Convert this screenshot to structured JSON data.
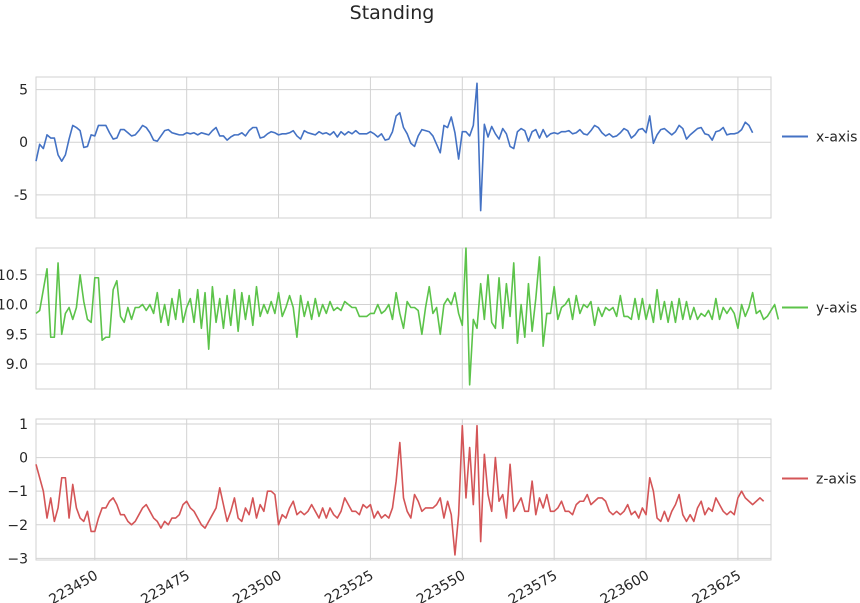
{
  "title": "Standing",
  "colors": {
    "grid": "#d2d2d2",
    "frame": "#d2d2d2",
    "x": "#4472c4",
    "y": "#5cc34a",
    "z": "#d45557"
  },
  "chart_data": [
    {
      "type": "line",
      "series": [
        {
          "name": "x-axis",
          "color": "#4472c4"
        }
      ],
      "x_start": 223434,
      "x_step": 1,
      "xlim": [
        223434,
        223634
      ],
      "xticks": [
        223450,
        223475,
        223500,
        223525,
        223550,
        223575,
        223600,
        223625
      ],
      "ylim": [
        -7.2,
        6.2
      ],
      "yticks": [
        5,
        0,
        -5
      ],
      "grid": true,
      "legend": "right",
      "values": [
        -1.8,
        -0.2,
        -0.6,
        0.7,
        0.4,
        0.4,
        -1.2,
        -1.8,
        -1.2,
        0.3,
        1.6,
        1.4,
        1.1,
        -0.5,
        -0.4,
        0.7,
        0.6,
        1.6,
        1.6,
        1.6,
        0.9,
        0.3,
        0.4,
        1.2,
        1.2,
        0.9,
        0.6,
        0.7,
        1.1,
        1.6,
        1.4,
        0.9,
        0.2,
        0.1,
        0.6,
        1.1,
        1.2,
        0.9,
        0.8,
        0.7,
        0.7,
        0.9,
        0.8,
        0.9,
        0.7,
        0.9,
        0.8,
        0.7,
        1.1,
        1.4,
        0.6,
        0.6,
        0.2,
        0.5,
        0.7,
        0.7,
        0.9,
        0.6,
        1.1,
        1.4,
        1.4,
        0.4,
        0.5,
        0.8,
        1.0,
        0.9,
        0.7,
        0.8,
        0.8,
        0.9,
        1.1,
        0.6,
        0.3,
        1.1,
        0.9,
        0.8,
        0.7,
        1.0,
        0.8,
        0.9,
        0.7,
        1.0,
        0.5,
        1.0,
        0.7,
        1.0,
        0.8,
        1.1,
        0.8,
        0.8,
        0.8,
        1.0,
        0.8,
        0.5,
        0.8,
        0.2,
        0.3,
        1.0,
        2.5,
        2.8,
        1.4,
        0.8,
        -0.1,
        -0.4,
        0.6,
        1.2,
        1.1,
        1.0,
        0.6,
        -0.2,
        -1.0,
        1.6,
        1.4,
        2.4,
        0.9,
        -1.6,
        1.0,
        1.0,
        0.6,
        1.6,
        5.6,
        -6.5,
        1.7,
        0.5,
        1.5,
        0.8,
        0.3,
        1.3,
        0.8,
        -0.4,
        -0.6,
        1.0,
        1.3,
        1.1,
        0.1,
        1.0,
        1.2,
        0.4,
        1.2,
        0.5,
        0.8,
        0.9,
        0.8,
        1.0,
        1.0,
        1.1,
        0.8,
        0.9,
        1.2,
        0.8,
        0.7,
        1.1,
        1.6,
        1.4,
        0.9,
        0.6,
        0.8,
        0.5,
        0.6,
        0.9,
        1.3,
        1.1,
        0.4,
        0.7,
        1.2,
        1.3,
        0.9,
        2.5,
        -0.1,
        0.7,
        1.2,
        1.3,
        1.0,
        0.7,
        1.0,
        1.6,
        1.3,
        0.3,
        0.7,
        1.0,
        1.3,
        1.4,
        0.8,
        0.7,
        0.2,
        1.0,
        1.1,
        1.4,
        0.7,
        0.8,
        0.8,
        0.9,
        1.2,
        1.9,
        1.6,
        0.9
      ]
    },
    {
      "type": "line",
      "series": [
        {
          "name": "y-axis",
          "color": "#5cc34a"
        }
      ],
      "x_start": 223434,
      "x_step": 1,
      "xlim": [
        223434,
        223634
      ],
      "xticks": [
        223450,
        223475,
        223500,
        223525,
        223550,
        223575,
        223600,
        223625
      ],
      "ylim": [
        8.58,
        10.95
      ],
      "yticks": [
        10.5,
        10.0,
        9.5,
        9.0
      ],
      "ytick_labels": [
        "10.5",
        "10.0",
        "9.5",
        "9.0"
      ],
      "grid": true,
      "legend": "right",
      "values": [
        9.85,
        9.9,
        10.25,
        10.6,
        9.45,
        9.45,
        10.7,
        9.5,
        9.85,
        9.95,
        9.75,
        9.95,
        10.5,
        10.05,
        9.75,
        9.7,
        10.45,
        10.45,
        9.4,
        9.45,
        9.45,
        10.25,
        10.4,
        9.8,
        9.7,
        9.95,
        9.75,
        9.95,
        9.95,
        10.0,
        9.9,
        10.0,
        9.85,
        10.2,
        9.7,
        10.0,
        9.65,
        10.1,
        9.75,
        10.25,
        9.7,
        9.95,
        10.1,
        9.7,
        10.25,
        9.6,
        10.2,
        9.25,
        10.3,
        9.7,
        10.1,
        9.6,
        10.15,
        9.65,
        10.25,
        9.55,
        10.2,
        9.75,
        10.15,
        9.65,
        10.3,
        9.8,
        10.0,
        9.85,
        10.05,
        9.85,
        10.2,
        9.8,
        9.95,
        10.15,
        9.95,
        9.45,
        10.15,
        9.8,
        10.05,
        9.75,
        10.1,
        9.8,
        10.0,
        9.85,
        10.05,
        9.9,
        9.95,
        9.9,
        10.05,
        10.0,
        9.95,
        9.95,
        9.8,
        9.8,
        9.8,
        9.85,
        9.85,
        10.0,
        9.85,
        9.9,
        10.0,
        9.75,
        10.2,
        9.85,
        9.6,
        10.05,
        9.95,
        9.95,
        9.9,
        9.5,
        9.95,
        10.3,
        9.85,
        9.95,
        9.5,
        10.0,
        10.1,
        10.0,
        10.2,
        9.85,
        9.65,
        10.95,
        8.65,
        9.75,
        9.6,
        10.35,
        9.75,
        10.5,
        9.7,
        9.6,
        10.45,
        9.6,
        10.35,
        9.8,
        10.7,
        9.35,
        10.0,
        9.45,
        10.35,
        9.55,
        10.1,
        10.8,
        9.3,
        9.85,
        9.85,
        10.3,
        9.75,
        9.95,
        10.0,
        10.1,
        9.75,
        10.15,
        9.85,
        10.0,
        9.95,
        10.05,
        9.65,
        9.95,
        9.8,
        9.95,
        9.9,
        9.95,
        9.8,
        10.15,
        9.8,
        9.8,
        9.75,
        10.1,
        9.75,
        10.1,
        9.75,
        10.0,
        9.7,
        10.25,
        9.75,
        10.05,
        9.7,
        10.05,
        9.7,
        10.1,
        9.75,
        10.05,
        9.75,
        9.95,
        9.75,
        9.85,
        9.8,
        9.9,
        9.75,
        10.1,
        9.75,
        9.95,
        9.85,
        9.95,
        9.85,
        9.6,
        10.0,
        9.8,
        9.95,
        10.2,
        9.85,
        9.9,
        9.75,
        9.8,
        9.9,
        10.0,
        9.75
      ]
    },
    {
      "type": "line",
      "series": [
        {
          "name": "z-axis",
          "color": "#d45557"
        }
      ],
      "x_start": 223434,
      "x_step": 1,
      "xlim": [
        223434,
        223634
      ],
      "xticks": [
        223450,
        223475,
        223500,
        223525,
        223550,
        223575,
        223600,
        223625
      ],
      "ylim": [
        -3.05,
        1.15
      ],
      "yticks": [
        1,
        0,
        -1,
        -2,
        -3
      ],
      "ytick_labels": [
        "1",
        "0",
        "−1",
        "−2",
        "−3"
      ],
      "grid": true,
      "legend": "right",
      "values": [
        -0.2,
        -0.6,
        -1.0,
        -1.8,
        -1.2,
        -1.9,
        -1.5,
        -0.6,
        -0.6,
        -1.8,
        -0.8,
        -1.5,
        -1.8,
        -1.9,
        -1.6,
        -2.2,
        -2.2,
        -1.8,
        -1.5,
        -1.5,
        -1.3,
        -1.2,
        -1.4,
        -1.7,
        -1.7,
        -1.9,
        -2.0,
        -1.9,
        -1.7,
        -1.5,
        -1.4,
        -1.6,
        -1.8,
        -1.9,
        -2.1,
        -1.9,
        -2.0,
        -1.8,
        -1.8,
        -1.7,
        -1.4,
        -1.3,
        -1.5,
        -1.6,
        -1.8,
        -2.0,
        -2.1,
        -1.9,
        -1.7,
        -1.5,
        -0.9,
        -1.4,
        -1.9,
        -1.6,
        -1.2,
        -1.8,
        -1.9,
        -1.5,
        -1.7,
        -1.2,
        -1.8,
        -1.4,
        -1.6,
        -1.0,
        -1.0,
        -1.1,
        -2.0,
        -1.7,
        -1.8,
        -1.5,
        -1.3,
        -1.7,
        -1.6,
        -1.7,
        -1.6,
        -1.4,
        -1.6,
        -1.8,
        -1.5,
        -1.8,
        -1.5,
        -1.7,
        -1.8,
        -1.6,
        -1.2,
        -1.4,
        -1.6,
        -1.6,
        -1.7,
        -1.4,
        -1.5,
        -1.4,
        -1.8,
        -1.6,
        -1.8,
        -1.7,
        -1.8,
        -1.5,
        -0.7,
        0.45,
        -1.2,
        -1.6,
        -1.8,
        -1.1,
        -1.3,
        -1.6,
        -1.5,
        -1.5,
        -1.5,
        -1.4,
        -1.2,
        -1.8,
        -1.3,
        -1.7,
        -2.9,
        -1.7,
        0.95,
        -1.2,
        0.3,
        -1.4,
        0.95,
        -2.5,
        0.1,
        -1.1,
        -1.6,
        0.0,
        -1.3,
        -1.1,
        -1.8,
        -0.2,
        -1.6,
        -1.4,
        -1.2,
        -1.6,
        -1.6,
        -0.7,
        -1.7,
        -1.2,
        -1.5,
        -1.1,
        -1.6,
        -1.6,
        -1.5,
        -1.3,
        -1.6,
        -1.6,
        -1.7,
        -1.4,
        -1.3,
        -1.3,
        -1.1,
        -1.4,
        -1.3,
        -1.2,
        -1.2,
        -1.3,
        -1.6,
        -1.7,
        -1.6,
        -1.7,
        -1.6,
        -1.4,
        -1.7,
        -1.6,
        -1.8,
        -1.5,
        -1.7,
        -0.6,
        -1.0,
        -1.8,
        -1.9,
        -1.6,
        -1.9,
        -1.6,
        -1.4,
        -1.1,
        -1.7,
        -1.9,
        -1.7,
        -1.9,
        -1.5,
        -1.3,
        -1.7,
        -1.5,
        -1.6,
        -1.2,
        -1.4,
        -1.6,
        -1.7,
        -1.6,
        -1.7,
        -1.2,
        -1.0,
        -1.2,
        -1.3,
        -1.4,
        -1.3,
        -1.2,
        -1.3
      ]
    }
  ]
}
